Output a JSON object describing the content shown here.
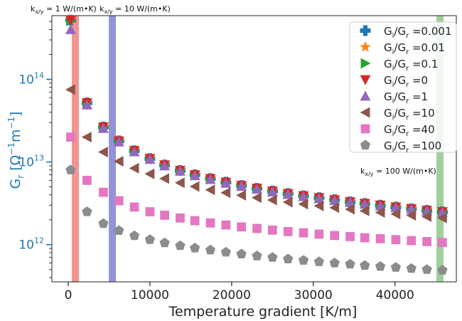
{
  "chart_data": {
    "type": "scatter",
    "xlabel": "Temperature gradient [K/m]",
    "ylabel_main": "G",
    "ylabel_sub": "r",
    "ylabel_unit": "[Ω",
    "ylabel_exp1": "−1",
    "ylabel_mid": "m",
    "ylabel_exp2": "−1",
    "ylabel_close": "]",
    "xlim": [
      -2000,
      47500
    ],
    "ylim_log10": [
      11.55,
      14.77
    ],
    "log_y": true,
    "x_ticks": [
      {
        "value": 0,
        "label": "0"
      },
      {
        "value": 10000,
        "label": "10000"
      },
      {
        "value": 20000,
        "label": "20000"
      },
      {
        "value": 30000,
        "label": "30000"
      },
      {
        "value": 40000,
        "label": "40000"
      }
    ],
    "y_ticks": [
      {
        "log": 12,
        "base": "10",
        "exp": "12"
      },
      {
        "log": 13,
        "base": "10",
        "exp": "13"
      },
      {
        "log": 14,
        "base": "10",
        "exp": "14"
      }
    ],
    "reference_lines": [
      {
        "x": 870,
        "color": "#f08080",
        "label_main": "k",
        "label_sub": "x/y",
        "label_rest": " = 1 W/(m•K)"
      },
      {
        "x": 5400,
        "color": "#8080d0",
        "label_main": "k",
        "label_sub": "x/y",
        "label_rest": " = 10 W/(m•K)"
      },
      {
        "x": 45500,
        "color": "#8dc88d",
        "label_main": "k",
        "label_sub": "x/y",
        "label_rest": " = 100 W/(m•K)"
      }
    ],
    "x": [
      300,
      2300,
      4300,
      6200,
      8100,
      10000,
      11800,
      13700,
      15500,
      17400,
      19300,
      21200,
      23100,
      25000,
      26900,
      28800,
      30700,
      32600,
      34500,
      36300,
      38200,
      40100,
      42000,
      43900,
      45800
    ],
    "legend_position": "top-right",
    "series": [
      {
        "name": "G",
        "name_sub": "i",
        "name_mid": "/G",
        "name_sub2": "r",
        "name_rest": " =0.001",
        "color": "#1f77b4",
        "marker": "plus",
        "values": [
          520000000000000.0,
          52000000000000.0,
          26500000000000.0,
          18000000000000.0,
          13700000000000.0,
          11000000000000.0,
          9200000000000.0,
          7900000000000.0,
          7000000000000.0,
          6300000000000.0,
          5700000000000.0,
          5200000000000.0,
          4800000000000.0,
          4450000000000.0,
          4150000000000.0,
          3900000000000.0,
          3700000000000.0,
          3500000000000.0,
          3300000000000.0,
          3150000000000.0,
          3000000000000.0,
          2850000000000.0,
          2720000000000.0,
          2600000000000.0,
          2500000000000.0
        ]
      },
      {
        "name": "G",
        "name_sub": "i",
        "name_mid": "/G",
        "name_sub2": "r",
        "name_rest": " =0.01",
        "color": "#ff7f0e",
        "marker": "star",
        "values": [
          520000000000000.0,
          52000000000000.0,
          26500000000000.0,
          18000000000000.0,
          13700000000000.0,
          11000000000000.0,
          9200000000000.0,
          7900000000000.0,
          7000000000000.0,
          6300000000000.0,
          5700000000000.0,
          5200000000000.0,
          4800000000000.0,
          4450000000000.0,
          4150000000000.0,
          3900000000000.0,
          3700000000000.0,
          3500000000000.0,
          3300000000000.0,
          3150000000000.0,
          3000000000000.0,
          2850000000000.0,
          2720000000000.0,
          2600000000000.0,
          2500000000000.0
        ]
      },
      {
        "name": "G",
        "name_sub": "i",
        "name_mid": "/G",
        "name_sub2": "r",
        "name_rest": " =0.1",
        "color": "#2ca02c",
        "marker": "triangle-right",
        "values": [
          510000000000000.0,
          51000000000000.0,
          26000000000000.0,
          17700000000000.0,
          13500000000000.0,
          10900000000000.0,
          9100000000000.0,
          7800000000000.0,
          6900000000000.0,
          6200000000000.0,
          5600000000000.0,
          5150000000000.0,
          4750000000000.0,
          4400000000000.0,
          4100000000000.0,
          3850000000000.0,
          3650000000000.0,
          3450000000000.0,
          3280000000000.0,
          3120000000000.0,
          2970000000000.0,
          2830000000000.0,
          2700000000000.0,
          2580000000000.0,
          2480000000000.0
        ]
      },
      {
        "name": "G",
        "name_sub": "i",
        "name_mid": "/G",
        "name_sub2": "r",
        "name_rest": " =0",
        "color": "#d62728",
        "marker": "triangle-down",
        "values": [
          520000000000000.0,
          52000000000000.0,
          26500000000000.0,
          18000000000000.0,
          13700000000000.0,
          11000000000000.0,
          9200000000000.0,
          7900000000000.0,
          7000000000000.0,
          6300000000000.0,
          5700000000000.0,
          5200000000000.0,
          4800000000000.0,
          4450000000000.0,
          4150000000000.0,
          3900000000000.0,
          3700000000000.0,
          3500000000000.0,
          3300000000000.0,
          3150000000000.0,
          3000000000000.0,
          2850000000000.0,
          2720000000000.0,
          2600000000000.0,
          2500000000000.0
        ]
      },
      {
        "name": "G",
        "name_sub": "i",
        "name_mid": "/G",
        "name_sub2": "r",
        "name_rest": " =1",
        "color": "#9467bd",
        "marker": "triangle-up",
        "values": [
          400000000000000.0,
          49000000000000.0,
          25500000000000.0,
          17500000000000.0,
          13300000000000.0,
          10800000000000.0,
          9000000000000.0,
          7750000000000.0,
          6850000000000.0,
          6150000000000.0,
          5550000000000.0,
          5100000000000.0,
          4700000000000.0,
          4350000000000.0,
          4080000000000.0,
          3830000000000.0,
          3620000000000.0,
          3430000000000.0,
          3250000000000.0,
          3100000000000.0,
          2950000000000.0,
          2820000000000.0,
          2690000000000.0,
          2570000000000.0,
          2470000000000.0
        ]
      },
      {
        "name": "G",
        "name_sub": "i",
        "name_mid": "/G",
        "name_sub2": "r",
        "name_rest": " =10",
        "color": "#8c564b",
        "marker": "triangle-left",
        "values": [
          75000000000000.0,
          20000000000000.0,
          13200000000000.0,
          10200000000000.0,
          8400000000000.0,
          7200000000000.0,
          6300000000000.0,
          5600000000000.0,
          5050000000000.0,
          4600000000000.0,
          4250000000000.0,
          3950000000000.0,
          3700000000000.0,
          3470000000000.0,
          3270000000000.0,
          3100000000000.0,
          2950000000000.0,
          2800000000000.0,
          2680000000000.0,
          2560000000000.0,
          2450000000000.0,
          2350000000000.0,
          2260000000000.0,
          2180000000000.0,
          2100000000000.0
        ]
      },
      {
        "name": "G",
        "name_sub": "i",
        "name_mid": "/G",
        "name_sub2": "r",
        "name_rest": " =40",
        "color": "#e377c2",
        "marker": "square",
        "values": [
          20000000000000.0,
          6000000000000.0,
          4300000000000.0,
          3400000000000.0,
          2850000000000.0,
          2500000000000.0,
          2270000000000.0,
          2100000000000.0,
          1950000000000.0,
          1830000000000.0,
          1730000000000.0,
          1640000000000.0,
          1570000000000.0,
          1500000000000.0,
          1440000000000.0,
          1390000000000.0,
          1340000000000.0,
          1290000000000.0,
          1250000000000.0,
          1210000000000.0,
          1180000000000.0,
          1150000000000.0,
          1120000000000.0,
          1090000000000.0,
          1060000000000.0
        ]
      },
      {
        "name": "G",
        "name_sub": "i",
        "name_mid": "/G",
        "name_sub2": "r",
        "name_rest": " =100",
        "color": "#8c8c8c",
        "marker": "pentagon",
        "values": [
          8000000000000.0,
          2500000000000.0,
          1800000000000.0,
          1480000000000.0,
          1280000000000.0,
          1150000000000.0,
          1050000000000.0,
          970000000000.0,
          910000000000.0,
          860000000000.0,
          810000000000.0,
          770000000000.0,
          730000000000.0,
          700000000000.0,
          670000000000.0,
          645000000000.0,
          620000000000.0,
          600000000000.0,
          580000000000.0,
          560000000000.0,
          545000000000.0,
          530000000000.0,
          515000000000.0,
          500000000000.0,
          490000000000.0
        ]
      }
    ]
  }
}
